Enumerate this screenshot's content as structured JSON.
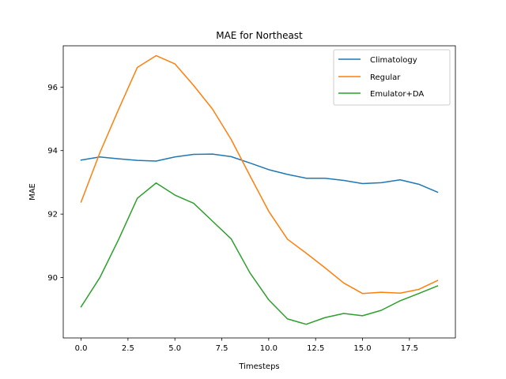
{
  "chart_data": {
    "type": "line",
    "title": "MAE for Northeast",
    "xlabel": "Timesteps",
    "ylabel": "MAE",
    "xlim": [
      -0.95,
      19.95
    ],
    "ylim": [
      88.1,
      97.3
    ],
    "xticks": [
      0.0,
      2.5,
      5.0,
      7.5,
      10.0,
      12.5,
      15.0,
      17.5
    ],
    "xtick_labels": [
      "0.0",
      "2.5",
      "5.0",
      "7.5",
      "10.0",
      "12.5",
      "15.0",
      "17.5"
    ],
    "yticks": [
      90,
      92,
      94,
      96
    ],
    "ytick_labels": [
      "90",
      "92",
      "94",
      "96"
    ],
    "grid": false,
    "legend_position": "upper right",
    "x": [
      0,
      1,
      2,
      3,
      4,
      5,
      6,
      7,
      8,
      9,
      10,
      11,
      12,
      13,
      14,
      15,
      16,
      17,
      18,
      19
    ],
    "series": [
      {
        "name": "Climatology",
        "color": "#1f77b4",
        "values": [
          93.7,
          93.8,
          93.74,
          93.69,
          93.67,
          93.8,
          93.88,
          93.89,
          93.81,
          93.61,
          93.4,
          93.25,
          93.13,
          93.13,
          93.06,
          92.96,
          92.99,
          93.08,
          92.94,
          92.69
        ]
      },
      {
        "name": "Regular",
        "color": "#ff7f0e",
        "values": [
          92.38,
          93.93,
          95.3,
          96.62,
          96.99,
          96.73,
          96.05,
          95.31,
          94.35,
          93.21,
          92.09,
          91.21,
          90.77,
          90.31,
          89.83,
          89.5,
          89.54,
          89.51,
          89.63,
          89.91
        ]
      },
      {
        "name": "Emulator+DA",
        "color": "#2ca02c",
        "values": [
          89.08,
          90.0,
          91.2,
          92.5,
          92.98,
          92.6,
          92.34,
          91.78,
          91.22,
          90.15,
          89.3,
          88.7,
          88.53,
          88.74,
          88.87,
          88.8,
          88.97,
          89.27,
          89.5,
          89.74
        ]
      }
    ]
  }
}
